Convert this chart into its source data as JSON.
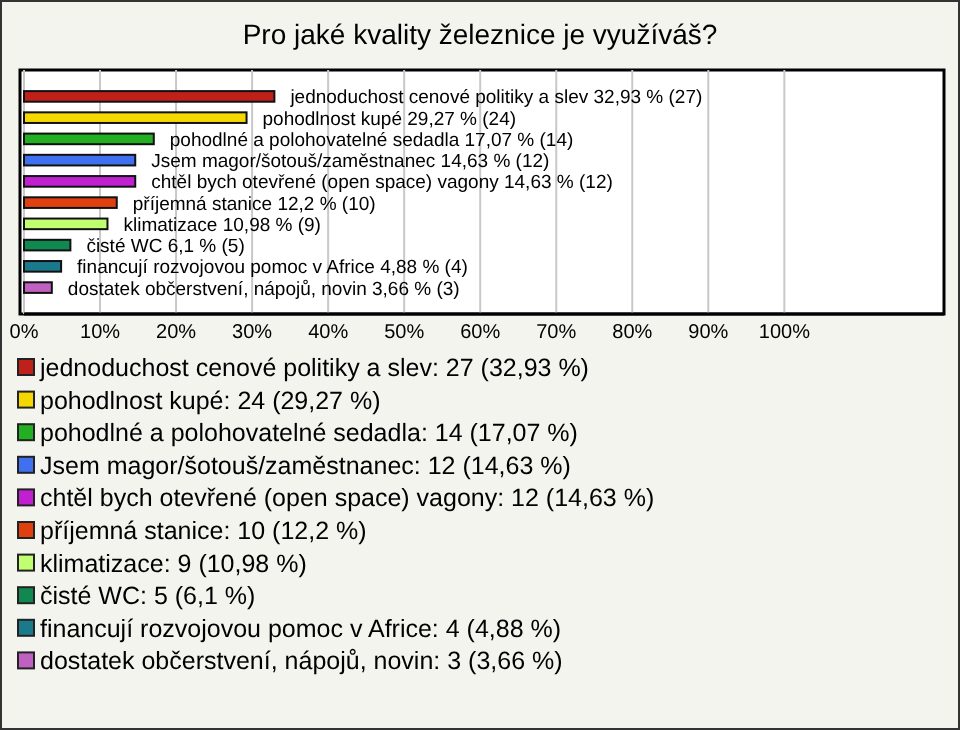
{
  "chart_data": {
    "type": "bar",
    "orientation": "horizontal",
    "title": "Pro jaké kvality železnice je využíváš?",
    "categories": [
      null
    ],
    "series": [
      {
        "name": "jednoduchost cenové politiky a slev: 27 (32,93 %)",
        "color": "#c0201a",
        "values": [
          32.93
        ],
        "value_labels": [
          "jednoduchost cenové politiky a slev 32,93 % (27)"
        ]
      },
      {
        "name": "pohodlnost kupé: 24 (29,27 %)",
        "color": "#f5d800",
        "values": [
          29.27
        ],
        "value_labels": [
          "pohodlnost kupé 29,27 % (24)"
        ]
      },
      {
        "name": "pohodlné a polohovatelné sedadla: 14 (17,07 %)",
        "color": "#22b022",
        "values": [
          17.07
        ],
        "value_labels": [
          "pohodlné a polohovatelné sedadla 17,07 % (14)"
        ]
      },
      {
        "name": "Jsem magor/šotouš/zaměstnanec: 12 (14,63 %)",
        "color": "#4070f0",
        "values": [
          14.63
        ],
        "value_labels": [
          "Jsem magor/šotouš/zaměstnanec 14,63 % (12)"
        ]
      },
      {
        "name": "chtěl bych otevřené (open space) vagony: 12 (14,63 %)",
        "color": "#c020d0",
        "values": [
          14.63
        ],
        "value_labels": [
          "chtěl bych otevřené (open space) vagony 14,63 % (12)"
        ]
      },
      {
        "name": "příjemná stanice: 10 (12,2 %)",
        "color": "#e04010",
        "values": [
          12.2
        ],
        "value_labels": [
          "příjemná stanice 12,2 % (10)"
        ]
      },
      {
        "name": "klimatizace: 9 (10,98 %)",
        "color": "#c0ff70",
        "values": [
          10.98
        ],
        "value_labels": [
          "klimatizace 10,98 % (9)"
        ]
      },
      {
        "name": "čisté WC: 5 (6,1 %)",
        "color": "#108850",
        "values": [
          6.1
        ],
        "value_labels": [
          "čisté WC 6,1 % (5)"
        ]
      },
      {
        "name": "financují rozvojovou pomoc v Africe: 4 (4,88 %)",
        "color": "#1a7a8c",
        "values": [
          4.88
        ],
        "value_labels": [
          "financují rozvojovou pomoc v Africe 4,88 % (4)"
        ]
      },
      {
        "name": "dostatek občerstvení, nápojů, novin: 3 (3,66 %)",
        "color": "#c060c0",
        "values": [
          3.66
        ],
        "value_labels": [
          "dostatek občerstvení, nápojů, novin 3,66 % (3)"
        ]
      }
    ],
    "xlim": [
      0,
      121
    ],
    "xticks": [
      {
        "value": 0,
        "label": "0%"
      },
      {
        "value": 10,
        "label": "10%"
      },
      {
        "value": 20,
        "label": "20%"
      },
      {
        "value": 30,
        "label": "30%"
      },
      {
        "value": 40,
        "label": "40%"
      },
      {
        "value": 50,
        "label": "50%"
      },
      {
        "value": 60,
        "label": "60%"
      },
      {
        "value": 70,
        "label": "70%"
      },
      {
        "value": 80,
        "label": "80%"
      },
      {
        "value": 90,
        "label": "90%"
      },
      {
        "value": 100,
        "label": "100%"
      }
    ],
    "grid": "x",
    "legend": "bottom",
    "tick_labels": "x"
  }
}
